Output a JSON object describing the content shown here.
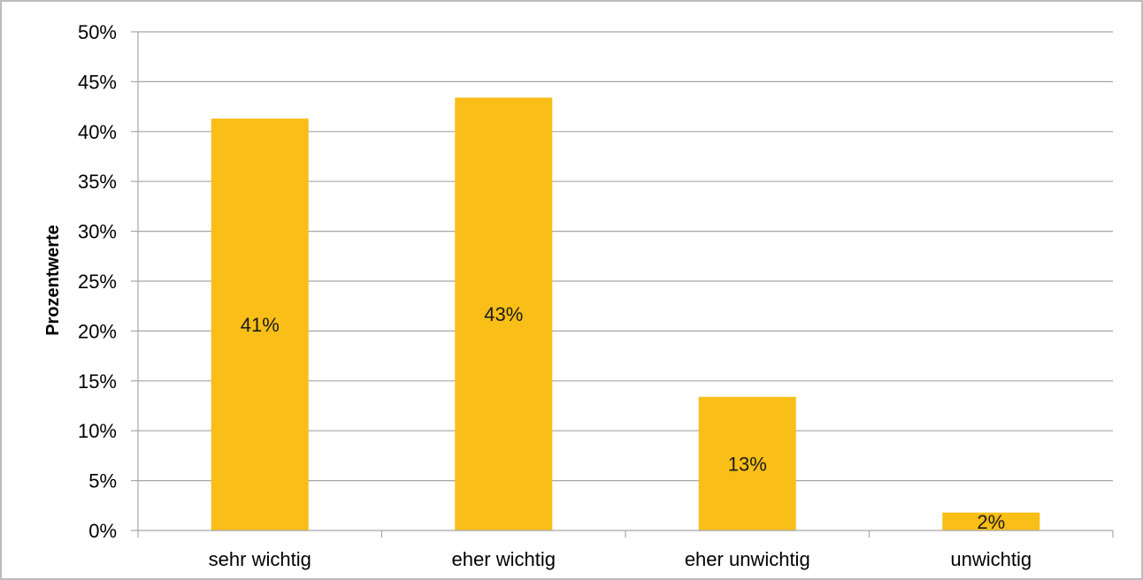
{
  "chart_data": {
    "type": "bar",
    "categories": [
      "sehr wichtig",
      "eher wichtig",
      "eher unwichtig",
      "unwichtig"
    ],
    "values": [
      41.3,
      43.4,
      13.4,
      1.8
    ],
    "data_labels": [
      "41%",
      "43%",
      "13%",
      "2%"
    ],
    "ylabel": "Prozentwerte",
    "ylim": [
      0,
      50
    ],
    "yticks": [
      0,
      5,
      10,
      15,
      20,
      25,
      30,
      35,
      40,
      45,
      50
    ],
    "ytick_labels": [
      "0%",
      "5%",
      "10%",
      "15%",
      "20%",
      "25%",
      "30%",
      "35%",
      "40%",
      "45%",
      "50%"
    ],
    "grid": true,
    "legend": "none",
    "bar_color": "#F9BE17",
    "grid_color": "#A6A6A6",
    "frame_color": "#A6A6A6"
  }
}
